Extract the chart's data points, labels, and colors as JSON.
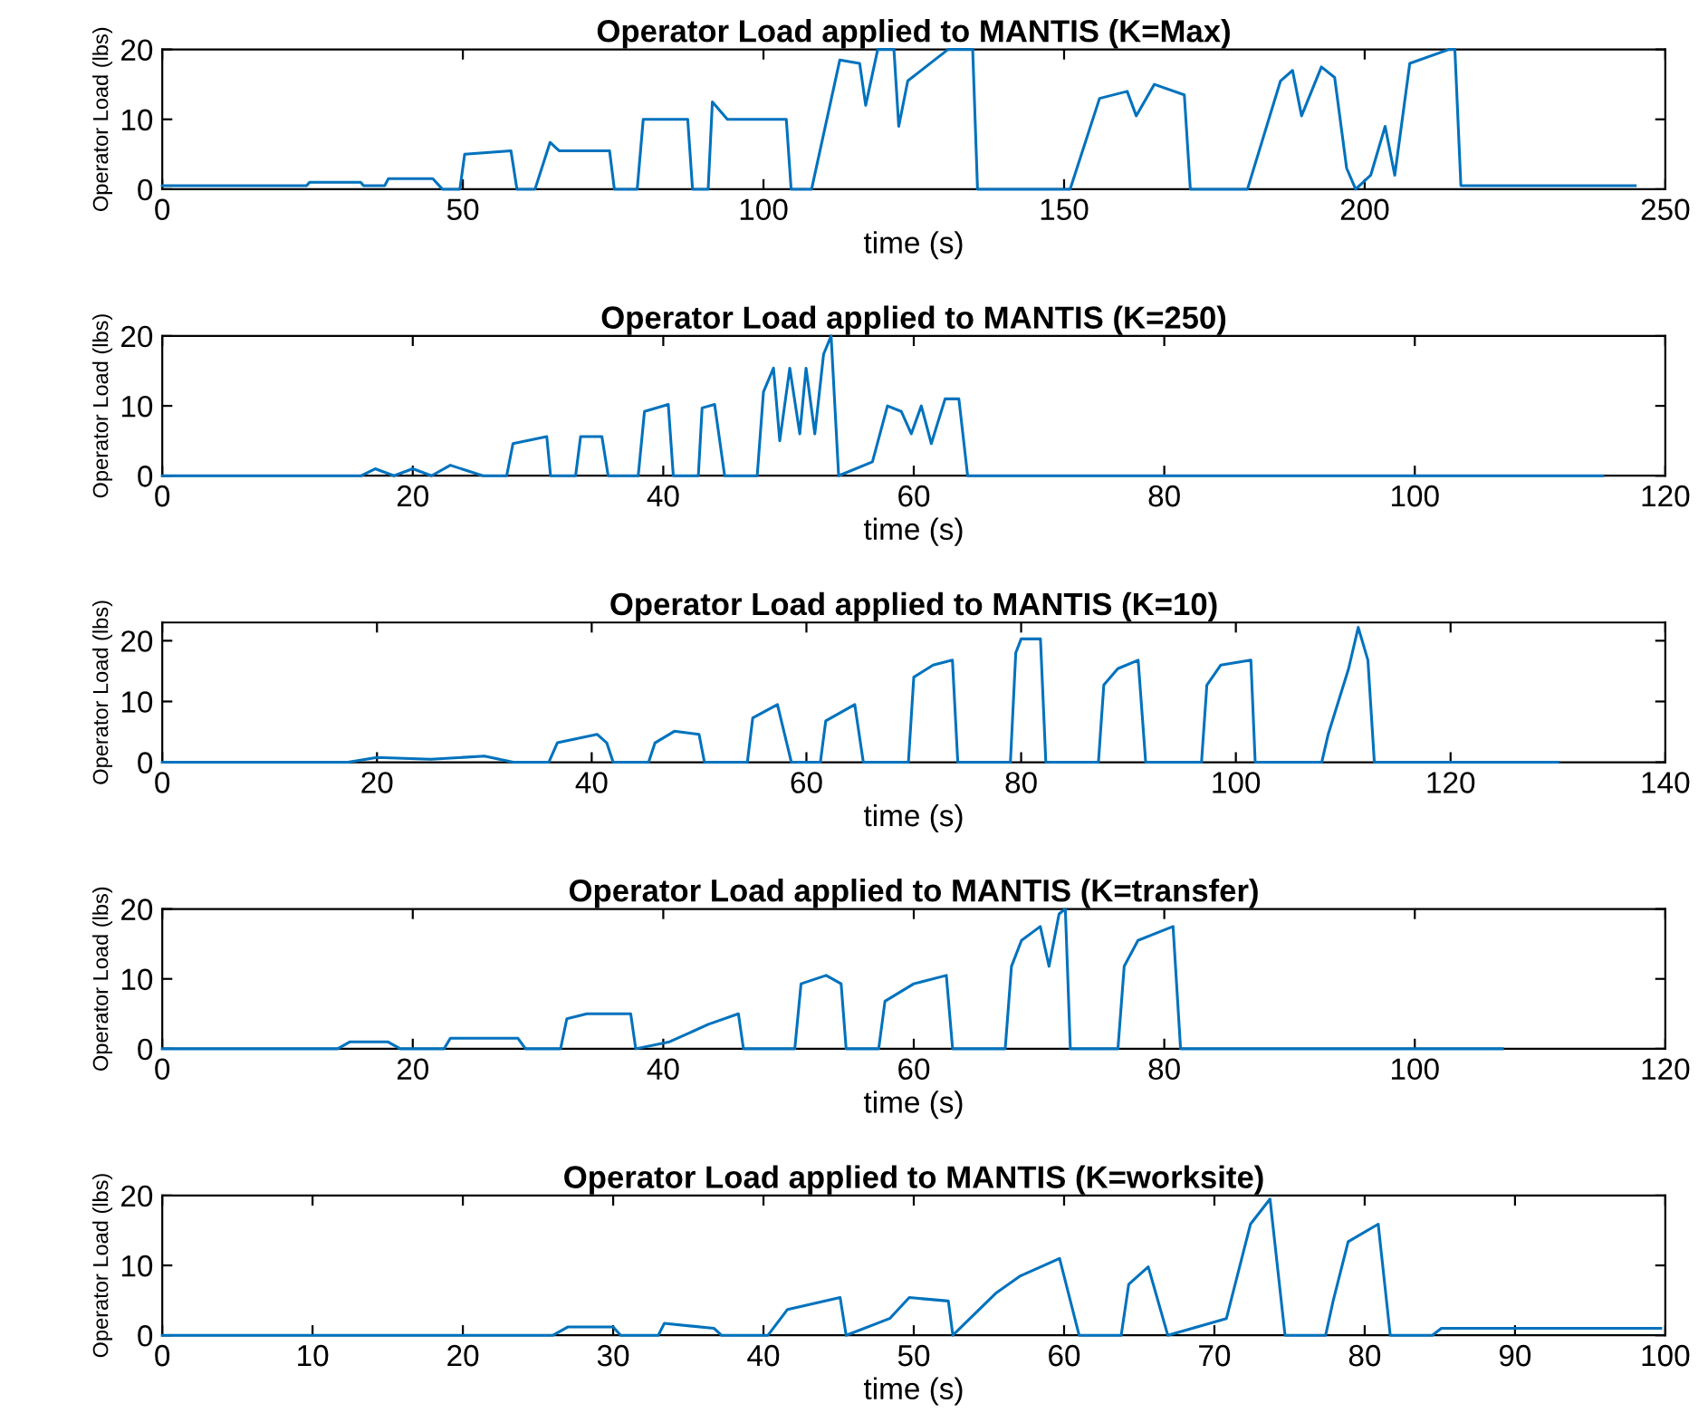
{
  "chart_data": [
    {
      "type": "line",
      "title": "Operator Load applied to MANTIS (K=Max)",
      "xlabel": "time (s)",
      "ylabel": "Operator Load (lbs)",
      "xlim": [
        0,
        250
      ],
      "ylim": [
        0,
        20
      ],
      "xticks": [
        0,
        50,
        100,
        150,
        200,
        250
      ],
      "yticks": [
        0,
        10,
        20
      ],
      "grid": false,
      "series": [
        {
          "color": "#0072bd",
          "x": [
            0,
            24,
            24.5,
            33,
            33.5,
            37,
            37.6,
            45,
            46.6,
            49.5,
            50.3,
            58,
            59,
            62,
            64.5,
            66,
            74.4,
            75.2,
            79,
            80,
            87.4,
            88.2,
            90.8,
            91.5,
            94,
            103.8,
            104.6,
            108,
            112.7,
            116,
            117,
            119,
            121.7,
            122.5,
            124,
            130.7,
            134.8,
            135.6,
            151,
            155.9,
            160.5,
            162,
            165,
            170,
            171,
            180.5,
            186,
            188,
            189.5,
            192.8,
            195,
            197,
            198.5,
            201,
            203.4,
            205,
            207.5,
            214,
            215,
            216,
            245
          ],
          "values": [
            0.5,
            0.5,
            1,
            1,
            0.5,
            0.5,
            1.5,
            1.5,
            0,
            0,
            5,
            5.5,
            0,
            0,
            6.7,
            5.5,
            5.5,
            0,
            0,
            10,
            10,
            0,
            0,
            12.5,
            10,
            10,
            0,
            0,
            18.5,
            18,
            12,
            20,
            20,
            9,
            15.5,
            20,
            20,
            0,
            0,
            13,
            14,
            10.5,
            15,
            13.5,
            0,
            0,
            15.5,
            17,
            10.5,
            17.5,
            16,
            3,
            0,
            2,
            9,
            2,
            18,
            20,
            20,
            0.5,
            0.5
          ]
        }
      ]
    },
    {
      "type": "line",
      "title": "Operator Load applied to MANTIS (K=250)",
      "xlabel": "time (s)",
      "ylabel": "Operator Load (lbs)",
      "xlim": [
        0,
        120
      ],
      "ylim": [
        0,
        20
      ],
      "xticks": [
        0,
        20,
        40,
        60,
        80,
        100,
        120
      ],
      "yticks": [
        0,
        10,
        20
      ],
      "grid": false,
      "series": [
        {
          "color": "#0072bd",
          "x": [
            0,
            15.9,
            17,
            18.5,
            20,
            21.5,
            23,
            25.6,
            27.5,
            28,
            30.7,
            31,
            33,
            33.4,
            35.1,
            35.6,
            38,
            38.5,
            40.4,
            40.8,
            42.8,
            43.1,
            44.1,
            44.9,
            47.5,
            48,
            48.8,
            49.3,
            50.1,
            50.9,
            51.4,
            52.1,
            52.8,
            53.4,
            54,
            56.7,
            57.9,
            59,
            59.8,
            60.6,
            61.4,
            62.5,
            63.6,
            64.3,
            115
          ],
          "values": [
            0,
            0,
            1,
            0,
            1,
            0,
            1.5,
            0,
            0,
            4.6,
            5.6,
            0,
            0,
            5.6,
            5.6,
            0,
            0,
            9.2,
            10.2,
            0,
            0,
            9.7,
            10.2,
            0,
            0,
            12,
            15.4,
            5,
            15.4,
            6,
            15.4,
            6,
            17.4,
            20,
            0,
            2,
            10,
            9.2,
            6,
            10,
            4.6,
            11,
            11,
            0,
            0
          ]
        }
      ]
    },
    {
      "type": "line",
      "title": "Operator Load applied to MANTIS (K=10)",
      "xlabel": "time (s)",
      "ylabel": "Operator Load (lbs)",
      "xlim": [
        0,
        140
      ],
      "ylim": [
        0,
        23
      ],
      "xticks": [
        0,
        20,
        40,
        60,
        80,
        100,
        120,
        140
      ],
      "yticks": [
        0,
        10,
        20
      ],
      "grid": false,
      "series": [
        {
          "color": "#0072bd",
          "x": [
            0,
            17.3,
            20,
            25,
            30,
            32.7,
            36,
            36.8,
            40.5,
            41.4,
            42,
            45.3,
            45.9,
            47.7,
            50,
            50.5,
            54.5,
            55,
            57.3,
            58.6,
            61.3,
            61.8,
            64.5,
            65.3,
            69.5,
            70,
            71.8,
            73.6,
            74.1,
            79,
            79.5,
            80,
            81.8,
            82.3,
            87.2,
            87.7,
            89,
            90.9,
            91.6,
            96.8,
            97.3,
            98.6,
            101.4,
            101.8,
            108,
            108.6,
            110.5,
            111.4,
            112.3,
            112.9,
            130
          ],
          "values": [
            0,
            0,
            0.8,
            0.5,
            1,
            0,
            0,
            3.2,
            4.6,
            3.2,
            0,
            0,
            3.2,
            5.1,
            4.6,
            0,
            0,
            7.3,
            9.5,
            0,
            0,
            6.8,
            9.5,
            0,
            0,
            14,
            16,
            16.8,
            0,
            0,
            18,
            20.3,
            20.3,
            0,
            0,
            12.7,
            15.4,
            16.8,
            0,
            0,
            12.7,
            16,
            16.8,
            0,
            0,
            4.6,
            15.4,
            22.2,
            16.8,
            0,
            0
          ]
        }
      ]
    },
    {
      "type": "line",
      "title": "Operator Load applied to MANTIS (K=transfer)",
      "xlabel": "time (s)",
      "ylabel": "Operator Load (lbs)",
      "xlim": [
        0,
        120
      ],
      "ylim": [
        0,
        20
      ],
      "xticks": [
        0,
        20,
        40,
        60,
        80,
        100,
        120
      ],
      "yticks": [
        0,
        10,
        20
      ],
      "grid": false,
      "series": [
        {
          "color": "#0072bd",
          "x": [
            0,
            14,
            15,
            18,
            19,
            22.5,
            23,
            28.4,
            29,
            31.8,
            32.3,
            33.9,
            37.4,
            37.8,
            40.5,
            43.6,
            46,
            46.4,
            50.5,
            51,
            53,
            54.2,
            54.6,
            57.2,
            57.7,
            60,
            62.6,
            63.1,
            67.3,
            67.8,
            68.6,
            70.1,
            70.8,
            71.6,
            72.1,
            72.5,
            76.3,
            76.8,
            77.9,
            80.7,
            81.3,
            107
          ],
          "values": [
            0,
            0,
            1,
            1,
            0,
            0,
            1.5,
            1.5,
            0,
            0,
            4.3,
            5,
            5,
            0,
            1,
            3.5,
            5,
            0,
            0,
            9.3,
            10.5,
            9.3,
            0,
            0,
            6.8,
            9.3,
            10.5,
            0,
            0,
            11.8,
            15.5,
            17.5,
            11.8,
            19.3,
            20,
            0,
            0,
            11.8,
            15.5,
            17.5,
            0,
            0
          ]
        }
      ]
    },
    {
      "type": "line",
      "title": "Operator Load applied to MANTIS (K=worksite)",
      "xlabel": "time (s)",
      "ylabel": "Operator Load (lbs)",
      "xlim": [
        0,
        100
      ],
      "ylim": [
        0,
        20
      ],
      "xticks": [
        0,
        10,
        20,
        30,
        40,
        50,
        60,
        70,
        80,
        90,
        100
      ],
      "yticks": [
        0,
        10,
        20
      ],
      "grid": false,
      "series": [
        {
          "color": "#0072bd",
          "x": [
            0,
            26,
            27,
            30,
            30.5,
            33,
            33.4,
            36.7,
            37.2,
            40.3,
            41.6,
            45.1,
            45.5,
            48.4,
            49.7,
            52.3,
            52.6,
            55.5,
            57.1,
            59.7,
            61,
            63.8,
            64.3,
            65.6,
            66.9,
            70.8,
            72.4,
            73.7,
            74.7,
            77.4,
            77.9,
            78.9,
            80.9,
            81.7,
            84.5,
            85.1,
            99.7
          ],
          "values": [
            0,
            0,
            1.2,
            1.2,
            0,
            0,
            1.7,
            1,
            0,
            0,
            3.7,
            5.4,
            0,
            2.4,
            5.4,
            4.9,
            0,
            6.1,
            8.5,
            11,
            0,
            0,
            7.3,
            9.8,
            0,
            2.4,
            15.9,
            19.5,
            0,
            0,
            4.9,
            13.4,
            15.9,
            0,
            0,
            1,
            1
          ]
        }
      ]
    }
  ]
}
